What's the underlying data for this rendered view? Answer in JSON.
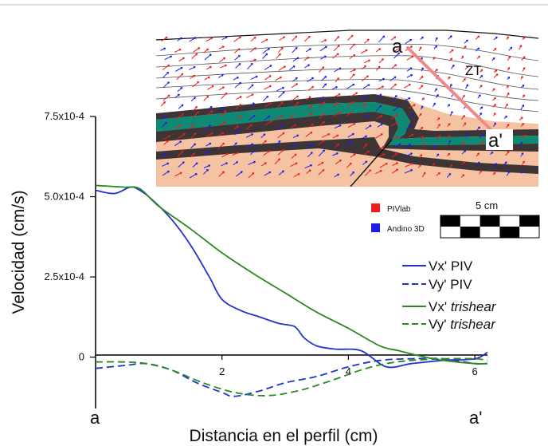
{
  "chart_data": {
    "type": "line",
    "xlabel": "Distancia en el perfil (cm)",
    "ylabel": "Velocidad (cm/s)",
    "xlim": [
      0,
      6.2
    ],
    "ylim": [
      -0.00016,
      0.00075
    ],
    "x_ticks": [
      {
        "value": 2,
        "label": "2"
      },
      {
        "value": 4,
        "label": "4"
      },
      {
        "value": 6,
        "label": "6"
      }
    ],
    "y_ticks": [
      {
        "value": 0,
        "label": "0"
      },
      {
        "value": 0.00025,
        "label": "2.5x10-4"
      },
      {
        "value": 0.0005,
        "label": "5.0x10-4"
      },
      {
        "value": 0.00075,
        "label": "7.5x10-4"
      }
    ],
    "x_end_labels": {
      "start": "a",
      "end": "a'"
    },
    "series": [
      {
        "name": "Vx' PIV",
        "color": "#2233cc",
        "dash": "solid",
        "x": [
          0,
          0.3,
          0.55,
          0.7,
          0.9,
          1.2,
          1.5,
          1.8,
          2.0,
          2.3,
          2.6,
          2.9,
          3.15,
          3.3,
          3.5,
          3.8,
          4.2,
          4.6,
          5.0,
          5.5,
          6.0,
          6.2
        ],
        "y": [
          0.00052,
          0.00051,
          0.00053,
          0.00052,
          0.00049,
          0.00043,
          0.00035,
          0.00025,
          0.00018,
          0.000145,
          0.000125,
          0.000105,
          9.5e-05,
          6e-05,
          3.5e-05,
          2.5e-05,
          2e-05,
          -3e-05,
          -2e-05,
          -1e-05,
          -5e-06,
          1.5e-05
        ]
      },
      {
        "name": "Vy' PIV",
        "color": "#2233cc",
        "dash": "dashed",
        "x": [
          0,
          0.5,
          0.8,
          1.2,
          1.6,
          2.0,
          2.2,
          2.6,
          3.0,
          3.5,
          4.0,
          4.5,
          5.0,
          5.5,
          6.0,
          6.2
        ],
        "y": [
          -3.5e-05,
          -2.5e-05,
          -2e-05,
          -4e-05,
          -8e-05,
          -0.00011,
          -0.000122,
          -0.000105,
          -8e-05,
          -6e-05,
          -3e-05,
          -1e-05,
          -5e-06,
          -5e-06,
          -2e-05,
          -2e-05
        ]
      },
      {
        "name": "Vx' trishear",
        "color": "#2a8a1e",
        "dash": "solid",
        "x": [
          0,
          0.45,
          0.7,
          1.0,
          1.5,
          2.0,
          2.5,
          3.0,
          3.5,
          4.0,
          4.5,
          4.8,
          5.1,
          5.5,
          6.0,
          6.2
        ],
        "y": [
          0.000535,
          0.00053,
          0.000525,
          0.00047,
          0.0004,
          0.000325,
          0.00026,
          0.0002,
          0.00014,
          9e-05,
          3.5e-05,
          2e-05,
          5e-06,
          -1e-05,
          -2e-05,
          -2e-05
        ]
      },
      {
        "name": "Vy' trishear",
        "color": "#2a8a1e",
        "dash": "dashed",
        "x": [
          0,
          0.45,
          0.8,
          1.2,
          1.7,
          2.2,
          2.7,
          3.2,
          3.7,
          4.2,
          4.6,
          5.0,
          5.5,
          6.0,
          6.2
        ],
        "y": [
          -1.5e-05,
          -1.5e-05,
          -2e-05,
          -4e-05,
          -8e-05,
          -0.00011,
          -0.00012,
          -0.000105,
          -7.5e-05,
          -4e-05,
          -2e-05,
          -1e-05,
          -5e-06,
          -5e-06,
          -1e-05
        ]
      }
    ]
  },
  "inset": {
    "label_a": "a",
    "label_a_prime": "a'",
    "label_zt": "ZT",
    "legend": [
      {
        "label": "PIVlab",
        "color": "#ee1c1c"
      },
      {
        "label": "Andino 3D",
        "color": "#1c1cee"
      }
    ],
    "scale_label": "5 cm",
    "colors": {
      "cover": "#ffffff",
      "salmon": "#f5c2a2",
      "dark": "#3d3535",
      "green": "#0e8a74",
      "section_line": "#f08888"
    }
  }
}
